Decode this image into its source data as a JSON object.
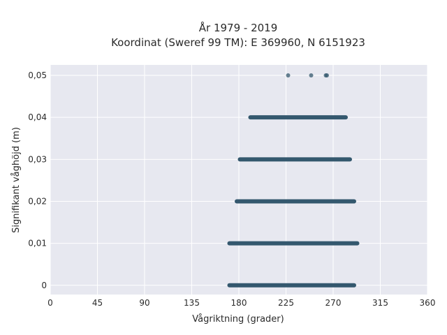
{
  "chart_data": {
    "type": "scatter",
    "title_line1": "År 1979 - 2019",
    "title_line2": "Koordinat (Sweref 99 TM): E 369960, N 6151923",
    "xlabel": "Vågriktning (grader)",
    "ylabel": "Signifikant våghöjd (m)",
    "xlim": [
      0,
      360
    ],
    "ylim": [
      -0.0022,
      0.0525
    ],
    "x_ticks": [
      0,
      45,
      90,
      135,
      180,
      225,
      270,
      315,
      360
    ],
    "y_ticks": [
      0,
      0.01,
      0.02,
      0.03,
      0.04,
      0.05
    ],
    "y_tick_labels": [
      "0",
      "0,01",
      "0,02",
      "0,03",
      "0,04",
      "0,05"
    ],
    "grid": true,
    "point_color": "#34586e",
    "plot_background": "#e7e8f0",
    "bands": [
      {
        "y": 0,
        "x_min": 169,
        "x_max": 292
      },
      {
        "y": 0.01,
        "x_min": 169,
        "x_max": 295
      },
      {
        "y": 0.02,
        "x_min": 176,
        "x_max": 292
      },
      {
        "y": 0.03,
        "x_min": 179,
        "x_max": 288
      },
      {
        "y": 0.04,
        "x_min": 189,
        "x_max": 284
      }
    ],
    "points": [
      {
        "x": 227,
        "y": 0.05
      },
      {
        "x": 249,
        "y": 0.05
      },
      {
        "x": 263,
        "y": 0.05
      },
      {
        "x": 264,
        "y": 0.05
      }
    ]
  }
}
